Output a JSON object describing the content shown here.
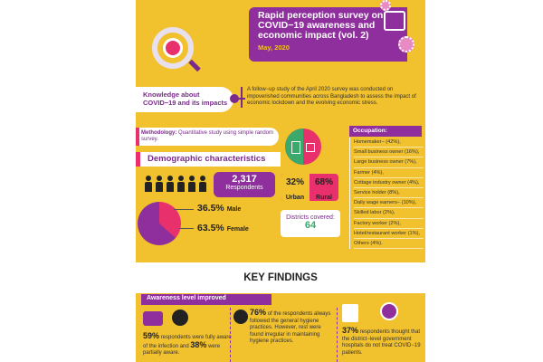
{
  "header": {
    "title": "Rapid perception survey on COVID−19 awareness and economic impact (vol. 2)",
    "date": "May, 2020"
  },
  "knowledge": {
    "label": "Knowledge about COVID−19 and its impacts",
    "intro": "A follow−up study of the April 2020 survey was conducted on impoverished communities across Bangladesh to assess the impact of economic lockdown and the evolving economic stress."
  },
  "methodology": {
    "label": "Methodology:",
    "text": "Quantitative study using simple random survey."
  },
  "demographics": {
    "title": "Demographic characteristics",
    "respondents_count": "2,317",
    "respondents_label": "Respondents",
    "male_pct": "36.5%",
    "male_label": "Male",
    "female_pct": "63.5%",
    "female_label": "Female",
    "urban_pct": "32%",
    "urban_label": "Urban",
    "rural_pct": "68%",
    "rural_label": "Rural",
    "districts_label": "Districts covered:",
    "districts_value": "64"
  },
  "occupation": {
    "title": "Occupation:",
    "items": [
      "Homemaker− (42%),",
      "Small business owner (16%),",
      "Large business owner (7%),",
      "Farmer (4%),",
      "Cottage industry owner (4%),",
      "Service holder (8%),",
      "Daily wage earners− (10%),",
      "Skilled labor (2%),",
      "Factory worker (2%),",
      "Hotel/restaurant worker (1%),",
      "Others (4%)."
    ]
  },
  "findings": {
    "title": "KEY FINDINGS",
    "awareness_label": "Awareness level improved",
    "f1_pct": "59%",
    "f1_text": "respondents were fully aware of the infection and",
    "f1_pct2": "38%",
    "f1_text2": "were partially aware.",
    "f2_pct": "76%",
    "f2_text": "of the respondents always followed the general hygiene practices. However, rest were found irregular in maintaining hygiene practices.",
    "f3_pct": "37%",
    "f3_text": "respondents thought that the district−level government hospitals do not treat COVID−19 patients."
  },
  "colors": {
    "background": "#f2c12e",
    "purple": "#8e2f9d",
    "pink": "#e8306d",
    "green": "#3aa96b"
  }
}
